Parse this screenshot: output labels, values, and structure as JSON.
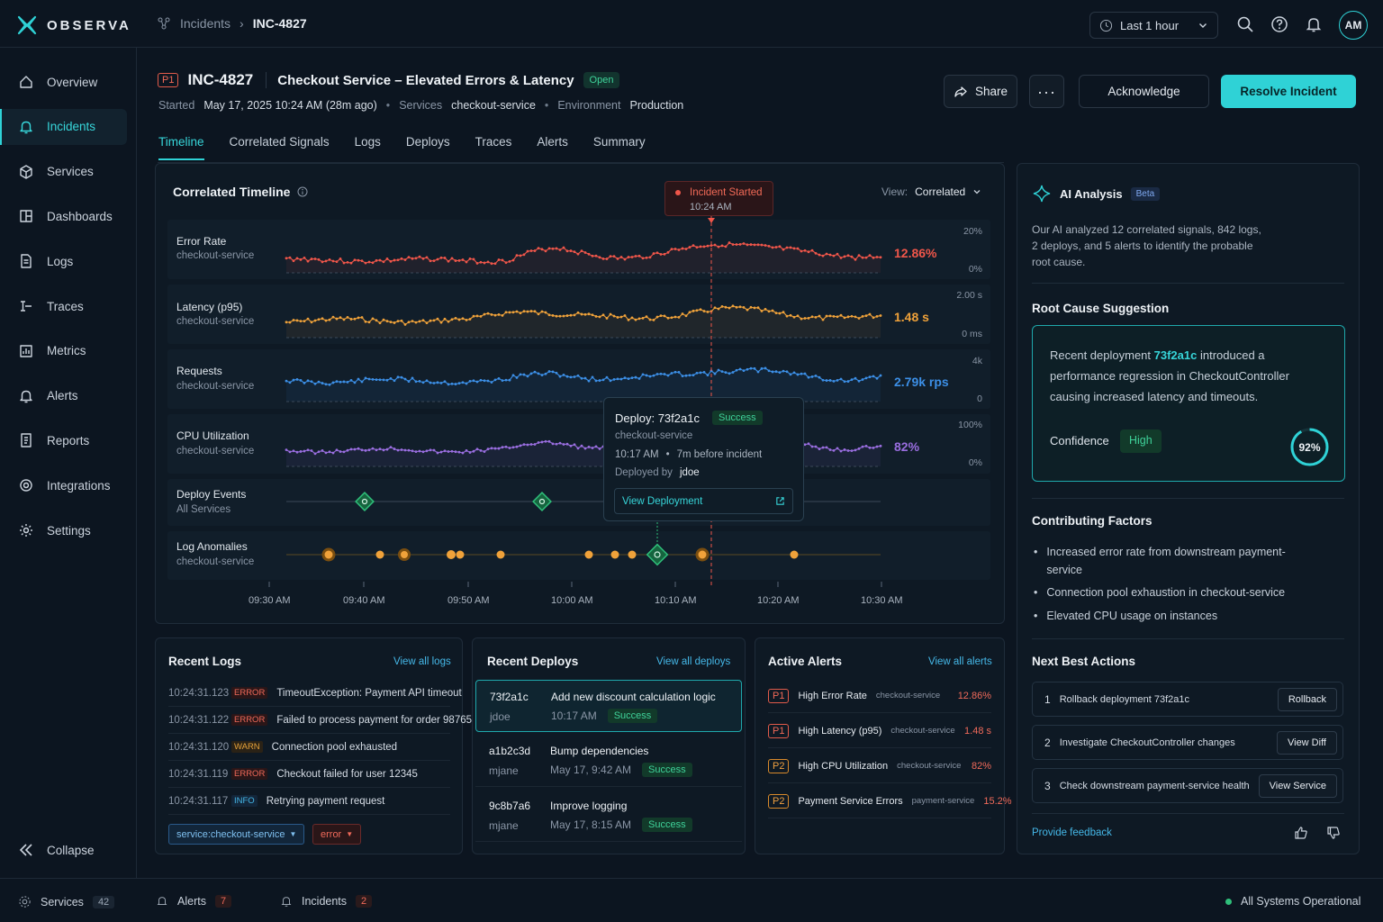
{
  "app": {
    "name": "OBSERVA"
  },
  "breadcrumb": {
    "parent": "Incidents",
    "current": "INC-4827"
  },
  "topbar": {
    "time_range": "Last 1 hour",
    "avatar": "AM"
  },
  "sidebar": {
    "items": [
      {
        "label": "Overview",
        "icon": "home-icon"
      },
      {
        "label": "Incidents",
        "icon": "bell-icon",
        "active": true
      },
      {
        "label": "Services",
        "icon": "cube-icon"
      },
      {
        "label": "Dashboards",
        "icon": "dashboard-icon"
      },
      {
        "label": "Logs",
        "icon": "file-icon"
      },
      {
        "label": "Traces",
        "icon": "traces-icon"
      },
      {
        "label": "Metrics",
        "icon": "bar-chart-icon"
      },
      {
        "label": "Alerts",
        "icon": "bell-icon"
      },
      {
        "label": "Reports",
        "icon": "report-icon"
      },
      {
        "label": "Integrations",
        "icon": "integrations-icon"
      },
      {
        "label": "Settings",
        "icon": "gear-icon"
      }
    ],
    "collapse": "Collapse"
  },
  "incident": {
    "priority": "P1",
    "id": "INC-4827",
    "title": "Checkout Service – Elevated Errors & Latency",
    "status": "Open",
    "started_label": "Started",
    "started": "May 17, 2025 10:24 AM (28m ago)",
    "services_label": "Services",
    "services": "checkout-service",
    "environment_label": "Environment",
    "environment": "Production"
  },
  "actions": {
    "share": "Share",
    "acknowledge": "Acknowledge",
    "resolve": "Resolve Incident"
  },
  "tabs": [
    "Timeline",
    "Correlated Signals",
    "Logs",
    "Deploys",
    "Traces",
    "Alerts",
    "Summary"
  ],
  "timeline": {
    "title": "Correlated Timeline",
    "view_label": "View:",
    "view_value": "Correlated",
    "marker_title": "Incident Started",
    "marker_time": "10:24 AM",
    "rows": [
      {
        "label": "Error Rate",
        "sub": "checkout-service",
        "value": "12.86%",
        "max": "20%",
        "min": "0%"
      },
      {
        "label": "Latency (p95)",
        "sub": "checkout-service",
        "value": "1.48 s",
        "max": "2.00 s",
        "min": "0 ms"
      },
      {
        "label": "Requests",
        "sub": "checkout-service",
        "value": "2.79k rps",
        "max": "4k",
        "min": "0"
      },
      {
        "label": "CPU Utilization",
        "sub": "checkout-service",
        "value": "82%",
        "max": "100%",
        "min": "0%"
      },
      {
        "label": "Deploy Events",
        "sub": "All Services"
      },
      {
        "label": "Log Anomalies",
        "sub": "checkout-service"
      }
    ],
    "x_ticks": [
      "09:30 AM",
      "09:40 AM",
      "09:50 AM",
      "10:00 AM",
      "10:10 AM",
      "10:20 AM",
      "10:30 AM"
    ],
    "colors": {
      "error": "#f0564a",
      "latency": "#f0a23a",
      "requests": "#3c8fe6",
      "cpu": "#9a6ee0",
      "deploy": "#2fbf7a"
    }
  },
  "popover": {
    "title": "Deploy: 73f2a1c",
    "status": "Success",
    "service": "checkout-service",
    "time": "10:17 AM",
    "relative": "7m before incident",
    "deployed_by_label": "Deployed by",
    "deployed_by": "jdoe",
    "link": "View Deployment"
  },
  "recent_logs": {
    "title": "Recent Logs",
    "link": "View all logs",
    "rows": [
      {
        "time": "10:24:31.123",
        "level": "ERROR",
        "msg": "TimeoutException: Payment API timeout"
      },
      {
        "time": "10:24:31.122",
        "level": "ERROR",
        "msg": "Failed to process payment for order 98765"
      },
      {
        "time": "10:24:31.120",
        "level": "WARN",
        "msg": "Connection pool exhausted"
      },
      {
        "time": "10:24:31.119",
        "level": "ERROR",
        "msg": "Checkout failed for user 12345"
      },
      {
        "time": "10:24:31.117",
        "level": "INFO",
        "msg": "Retrying payment request"
      }
    ],
    "filters": [
      "service:checkout-service",
      "error"
    ]
  },
  "recent_deploys": {
    "title": "Recent Deploys",
    "link": "View all deploys",
    "rows": [
      {
        "sha": "73f2a1c",
        "user": "jdoe",
        "msg": "Add new discount calculation logic",
        "time": "10:17 AM",
        "status": "Success"
      },
      {
        "sha": "a1b2c3d",
        "user": "mjane",
        "msg": "Bump dependencies",
        "time": "May 17, 9:42 AM",
        "status": "Success"
      },
      {
        "sha": "9c8b7a6",
        "user": "mjane",
        "msg": "Improve logging",
        "time": "May 17, 8:15 AM",
        "status": "Success"
      }
    ]
  },
  "active_alerts": {
    "title": "Active Alerts",
    "link": "View all alerts",
    "rows": [
      {
        "priority": "P1",
        "name": "High Error Rate",
        "service": "checkout-service",
        "value": "12.86%"
      },
      {
        "priority": "P1",
        "name": "High Latency (p95)",
        "service": "checkout-service",
        "value": "1.48 s"
      },
      {
        "priority": "P2",
        "name": "High CPU Utilization",
        "service": "checkout-service",
        "value": "82%"
      },
      {
        "priority": "P2",
        "name": "Payment Service Errors",
        "service": "payment-service",
        "value": "15.2%"
      }
    ]
  },
  "ai": {
    "title": "AI Analysis",
    "beta": "Beta",
    "summary": "Our AI analyzed 12 correlated signals, 842 logs, 2 deploys, and 5 alerts to identify the probable root cause.",
    "root_title": "Root Cause Suggestion",
    "root_prefix": "Recent deployment",
    "root_sha": "73f2a1c",
    "root_suffix": "introduced a performance regression in CheckoutController causing increased latency and timeouts.",
    "confidence_label": "Confidence",
    "confidence_value": "High",
    "confidence_pct": "92%",
    "confidence_fraction": 0.92,
    "factors_title": "Contributing Factors",
    "factors": [
      "Increased error rate from downstream payment-service",
      "Connection pool exhaustion in checkout-service",
      "Elevated CPU usage on instances"
    ],
    "nba_title": "Next Best Actions",
    "nba": [
      {
        "n": "1",
        "text": "Rollback deployment 73f2a1c",
        "btn": "Rollback"
      },
      {
        "n": "2",
        "text": "Investigate CheckoutController changes",
        "btn": "View Diff"
      },
      {
        "n": "3",
        "text": "Check downstream payment-service health",
        "btn": "View Service"
      }
    ],
    "feedback": "Provide feedback"
  },
  "statusbar": {
    "services_label": "Services",
    "services_count": "42",
    "alerts_label": "Alerts",
    "alerts_count": "7",
    "incidents_label": "Incidents",
    "incidents_count": "2",
    "system": "All Systems Operational"
  }
}
